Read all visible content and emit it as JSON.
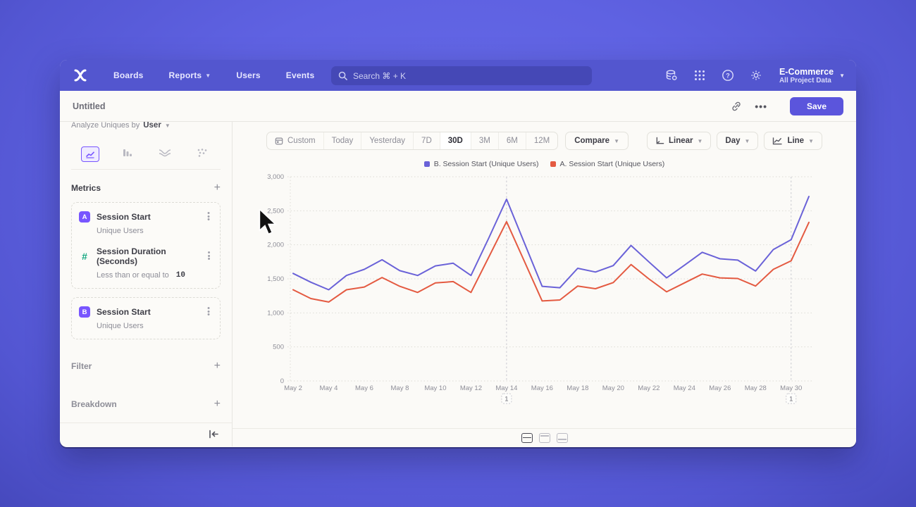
{
  "nav": {
    "items": [
      "Boards",
      "Reports",
      "Users",
      "Events"
    ],
    "search_placeholder": "Search  ⌘ + K",
    "project": {
      "name": "E-Commerce",
      "scope": "All Project Data"
    }
  },
  "header": {
    "title": "Untitled",
    "save_label": "Save",
    "ellipsis": "•••"
  },
  "sidebar": {
    "analyze_label": "Analyze Uniques by",
    "analyze_value": "User",
    "metrics_title": "Metrics",
    "metrics": [
      {
        "badge": "A",
        "name": "Session Start",
        "sub": "Unique Users"
      },
      {
        "badge": "#",
        "name": "Session Duration (Seconds)",
        "filter_label": "Less than or equal to",
        "filter_value": "10"
      },
      {
        "badge": "B",
        "name": "Session Start",
        "sub": "Unique Users"
      }
    ],
    "filter_label": "Filter",
    "breakdown_label": "Breakdown"
  },
  "toolbar": {
    "ranges": [
      "Custom",
      "Today",
      "Yesterday",
      "7D",
      "30D",
      "3M",
      "6M",
      "12M"
    ],
    "selected_range": "30D",
    "compare_label": "Compare",
    "scale_label": "Linear",
    "interval_label": "Day",
    "chart_type_label": "Line"
  },
  "chart_data": {
    "type": "line",
    "x": [
      "May 2",
      "May 3",
      "May 4",
      "May 5",
      "May 6",
      "May 7",
      "May 8",
      "May 9",
      "May 10",
      "May 11",
      "May 12",
      "May 13",
      "May 14",
      "May 15",
      "May 16",
      "May 17",
      "May 18",
      "May 19",
      "May 20",
      "May 21",
      "May 22",
      "May 23",
      "May 24",
      "May 25",
      "May 26",
      "May 27",
      "May 28",
      "May 29",
      "May 30",
      "May 31"
    ],
    "series": [
      {
        "name": "B. Session Start (Unique Users)",
        "color": "#6a62d8",
        "values": [
          1580,
          1450,
          1340,
          1550,
          1640,
          1780,
          1620,
          1550,
          1690,
          1730,
          1550,
          2100,
          2670,
          2030,
          1390,
          1370,
          1655,
          1600,
          1695,
          1990,
          1750,
          1515,
          1700,
          1890,
          1795,
          1775,
          1615,
          1930,
          2075,
          2710
        ]
      },
      {
        "name": "A. Session Start (Unique Users)",
        "color": "#e45a41",
        "values": [
          1340,
          1210,
          1160,
          1340,
          1380,
          1520,
          1390,
          1300,
          1440,
          1460,
          1300,
          1820,
          2340,
          1760,
          1175,
          1190,
          1395,
          1355,
          1445,
          1710,
          1500,
          1310,
          1440,
          1570,
          1515,
          1505,
          1395,
          1640,
          1765,
          2330
        ]
      }
    ],
    "ylim": [
      0,
      3000
    ],
    "yticks": [
      0,
      500,
      1000,
      1500,
      2000,
      2500,
      3000
    ],
    "x_label_every": 2,
    "grid": true,
    "legend_position": "top-center",
    "annotations": [
      {
        "x": "May 14",
        "label": "1"
      },
      {
        "x": "May 30",
        "label": "1"
      }
    ]
  },
  "colors": {
    "accent": "#7856ff",
    "nav_bg": "#5356cf",
    "save_bg": "#5b55dc",
    "series_b": "#6a62d8",
    "series_a": "#e45a41",
    "hash_green": "#18a882"
  }
}
